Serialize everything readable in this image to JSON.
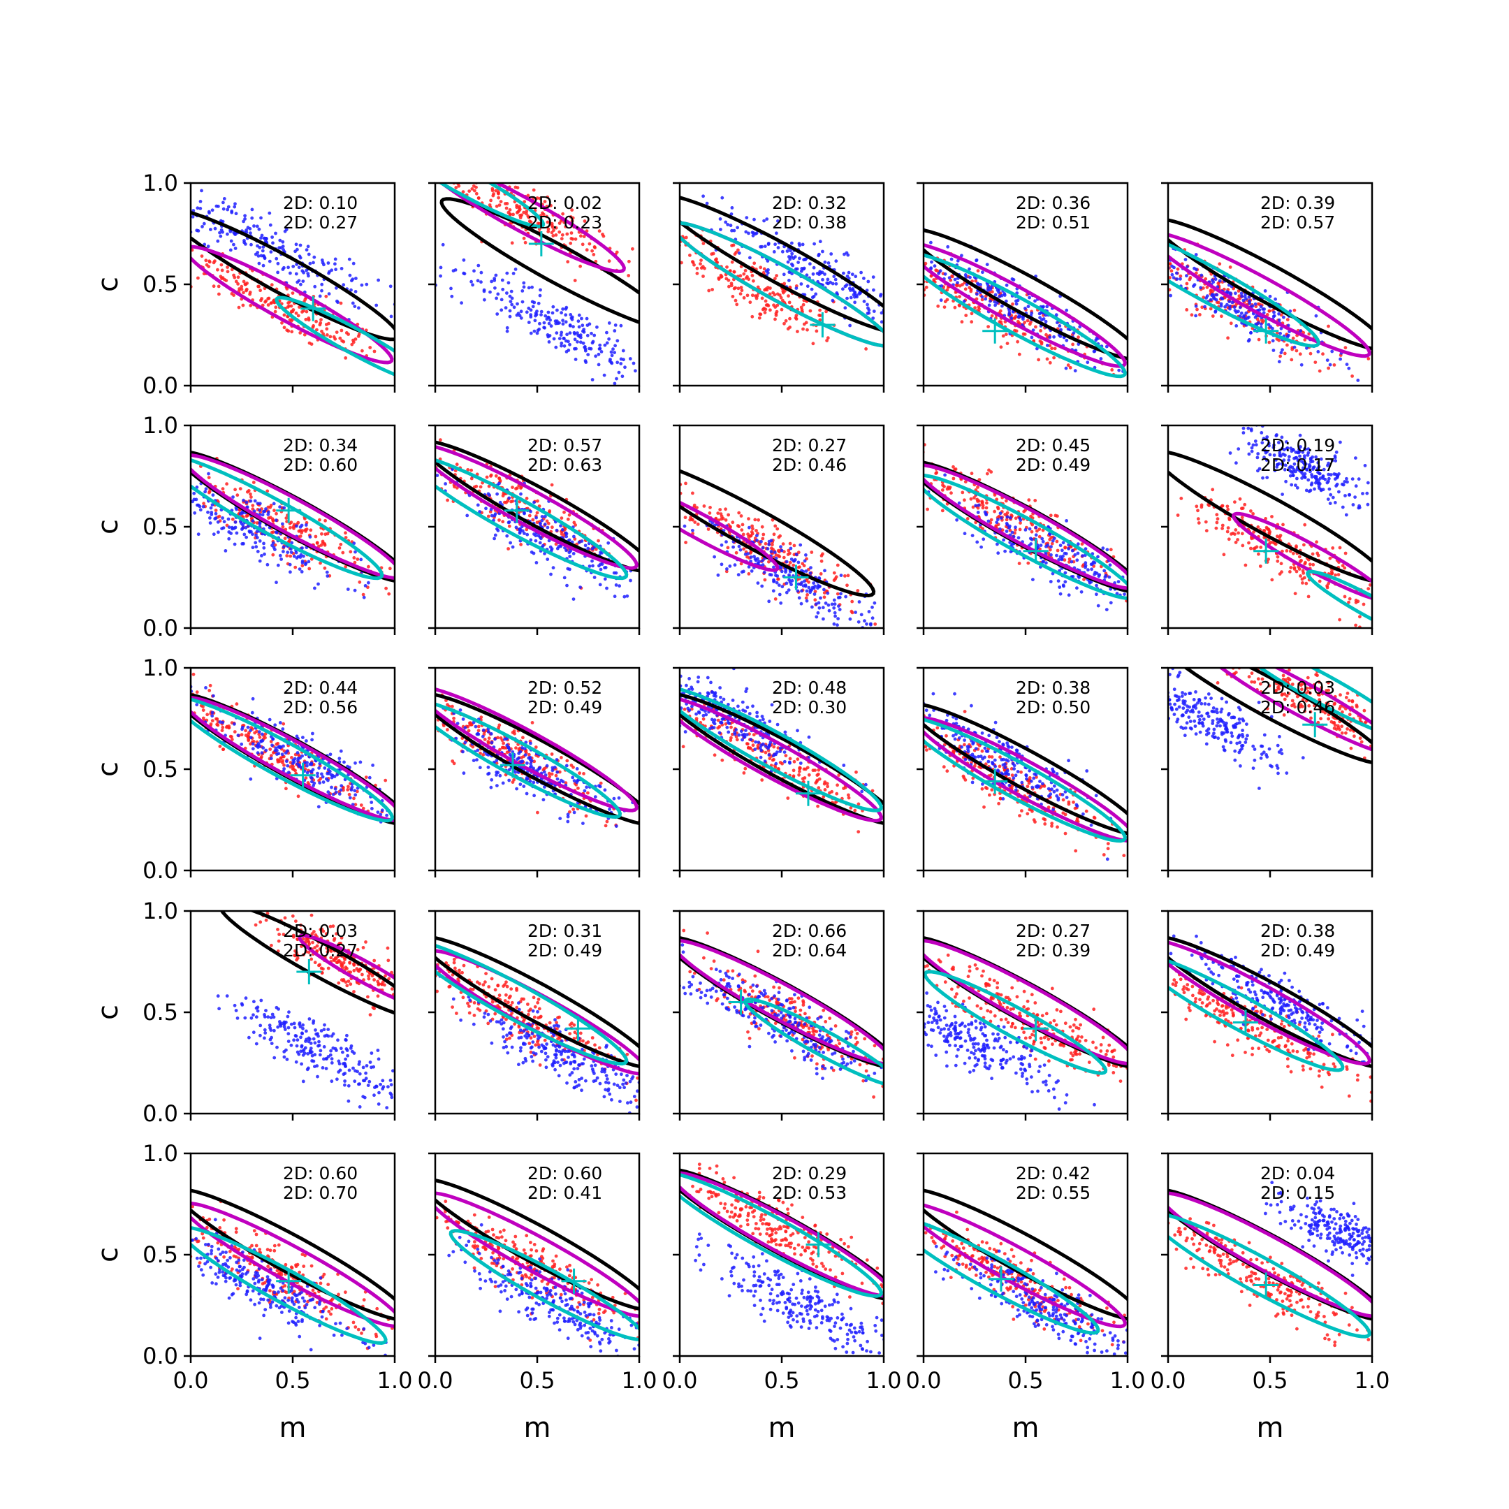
{
  "figure": {
    "x_axis_label": "m",
    "y_axis_label": "c",
    "colors": {
      "blue_points": "#1f1fff",
      "red_points": "#ff2020",
      "black_contour": "#000000",
      "magenta_contour": "#bf00bf",
      "cyan_contour": "#00bfbf",
      "marker": "#00bfbf"
    }
  },
  "chart_data": {
    "type": "scatter",
    "layout": "5x5 grid of panels",
    "xlabel": "m",
    "ylabel": "c",
    "xlim": [
      0.0,
      1.0
    ],
    "ylim": [
      0.0,
      1.0
    ],
    "xticks": [
      "0.0",
      "0.5",
      "1.0"
    ],
    "yticks": [
      "0.0",
      "0.5",
      "1.0"
    ],
    "series_colors": [
      "blue",
      "red",
      "black contour",
      "magenta contour",
      "cyan contour",
      "cyan + marker"
    ],
    "panels": [
      {
        "annotations": [
          "2D: 0.10",
          "2D: 0.27"
        ],
        "marker": [
          0.6,
          0.38
        ],
        "blue": {
          "m": 0.35,
          "c": 0.7,
          "s": 0.92
        },
        "red": {
          "m": 0.45,
          "c": 0.4,
          "s": 0.85
        },
        "black": {
          "m": 0.45,
          "c": 0.55,
          "s": 0.9
        },
        "magenta": {
          "m": 0.48,
          "c": 0.4,
          "s": 0.8
        },
        "cyan": {
          "m": 0.8,
          "c": 0.22,
          "s": 0.6
        }
      },
      {
        "annotations": [
          "2D: 0.02",
          "2D: 0.23"
        ],
        "marker": [
          0.52,
          0.7
        ],
        "blue": {
          "m": 0.6,
          "c": 0.3,
          "s": 0.9
        },
        "red": {
          "m": 0.45,
          "c": 0.85,
          "s": 0.8
        },
        "black": {
          "m": 0.6,
          "c": 0.6,
          "s": 0.9
        },
        "magenta": {
          "m": 0.42,
          "c": 0.85,
          "s": 0.8
        },
        "cyan": {
          "m": 0.15,
          "c": 1.0,
          "s": 0.6
        }
      },
      {
        "annotations": [
          "2D: 0.32",
          "2D: 0.38"
        ],
        "marker": [
          0.7,
          0.3
        ],
        "blue": {
          "m": 0.7,
          "c": 0.55,
          "s": 0.9
        },
        "red": {
          "m": 0.35,
          "c": 0.5,
          "s": 0.85
        },
        "black": {
          "m": 0.5,
          "c": 0.6,
          "s": 0.95
        },
        "magenta": {
          "m": 0.5,
          "c": 0.5,
          "s": 0.85
        },
        "cyan": {
          "m": 0.5,
          "c": 0.5,
          "s": 0.85
        }
      },
      {
        "annotations": [
          "2D: 0.36",
          "2D: 0.51"
        ],
        "marker": [
          0.35,
          0.27
        ],
        "blue": {
          "m": 0.45,
          "c": 0.4,
          "s": 0.85
        },
        "red": {
          "m": 0.3,
          "c": 0.4,
          "s": 0.85
        },
        "black": {
          "m": 0.5,
          "c": 0.45,
          "s": 0.9
        },
        "magenta": {
          "m": 0.45,
          "c": 0.4,
          "s": 0.85
        },
        "cyan": {
          "m": 0.45,
          "c": 0.35,
          "s": 0.85
        }
      },
      {
        "annotations": [
          "2D: 0.39",
          "2D: 0.57"
        ],
        "marker": [
          0.48,
          0.27
        ],
        "blue": {
          "m": 0.35,
          "c": 0.4,
          "s": 0.8
        },
        "red": {
          "m": 0.35,
          "c": 0.4,
          "s": 0.85
        },
        "black": {
          "m": 0.5,
          "c": 0.5,
          "s": 0.9
        },
        "magenta": {
          "m": 0.45,
          "c": 0.45,
          "s": 0.85
        },
        "cyan": {
          "m": 0.2,
          "c": 0.5,
          "s": 0.85
        }
      },
      {
        "annotations": [
          "2D: 0.34",
          "2D: 0.60"
        ],
        "marker": [
          0.48,
          0.58
        ],
        "blue": {
          "m": 0.3,
          "c": 0.5,
          "s": 0.8
        },
        "red": {
          "m": 0.45,
          "c": 0.5,
          "s": 0.85
        },
        "black": {
          "m": 0.5,
          "c": 0.55,
          "s": 0.9
        },
        "magenta": {
          "m": 0.5,
          "c": 0.55,
          "s": 0.85
        },
        "cyan": {
          "m": 0.4,
          "c": 0.55,
          "s": 0.85
        }
      },
      {
        "annotations": [
          "2D: 0.57",
          "2D: 0.63"
        ],
        "marker": [
          0.4,
          0.58
        ],
        "blue": {
          "m": 0.55,
          "c": 0.45,
          "s": 0.75
        },
        "red": {
          "m": 0.4,
          "c": 0.6,
          "s": 0.85
        },
        "black": {
          "m": 0.5,
          "c": 0.6,
          "s": 0.9
        },
        "magenta": {
          "m": 0.45,
          "c": 0.6,
          "s": 0.85
        },
        "cyan": {
          "m": 0.4,
          "c": 0.55,
          "s": 0.85
        }
      },
      {
        "annotations": [
          "2D: 0.27",
          "2D: 0.46"
        ],
        "marker": [
          0.57,
          0.25
        ],
        "blue": {
          "m": 0.55,
          "c": 0.25,
          "s": 0.7
        },
        "red": {
          "m": 0.4,
          "c": 0.4,
          "s": 0.8
        },
        "black": {
          "m": 0.35,
          "c": 0.5,
          "s": 0.95
        },
        "magenta": {
          "m": 0.1,
          "c": 0.5,
          "s": 0.6
        },
        "cyan": {
          "m": 0.0,
          "c": 0.0,
          "s": 0.0
        }
      },
      {
        "annotations": [
          "2D: 0.45",
          "2D: 0.49"
        ],
        "marker": [
          0.55,
          0.38
        ],
        "blue": {
          "m": 0.65,
          "c": 0.35,
          "s": 0.8
        },
        "red": {
          "m": 0.4,
          "c": 0.55,
          "s": 0.85
        },
        "black": {
          "m": 0.5,
          "c": 0.5,
          "s": 0.9
        },
        "magenta": {
          "m": 0.5,
          "c": 0.5,
          "s": 0.85
        },
        "cyan": {
          "m": 0.5,
          "c": 0.45,
          "s": 0.85
        }
      },
      {
        "annotations": [
          "2D: 0.19",
          "2D: 0.17"
        ],
        "marker": [
          0.48,
          0.38
        ],
        "blue": {
          "m": 0.65,
          "c": 0.8,
          "s": 0.5
        },
        "red": {
          "m": 0.55,
          "c": 0.4,
          "s": 0.8
        },
        "black": {
          "m": 0.5,
          "c": 0.55,
          "s": 0.9
        },
        "magenta": {
          "m": 0.7,
          "c": 0.35,
          "s": 0.6
        },
        "cyan": {
          "m": 1.0,
          "c": 0.1,
          "s": 0.5
        }
      },
      {
        "annotations": [
          "2D: 0.44",
          "2D: 0.56"
        ],
        "marker": [
          0.55,
          0.47
        ],
        "blue": {
          "m": 0.55,
          "c": 0.55,
          "s": 0.8
        },
        "red": {
          "m": 0.4,
          "c": 0.6,
          "s": 0.85
        },
        "black": {
          "m": 0.5,
          "c": 0.55,
          "s": 0.9
        },
        "magenta": {
          "m": 0.5,
          "c": 0.55,
          "s": 0.85
        },
        "cyan": {
          "m": 0.45,
          "c": 0.55,
          "s": 0.85
        }
      },
      {
        "annotations": [
          "2D: 0.52",
          "2D: 0.49"
        ],
        "marker": [
          0.38,
          0.52
        ],
        "blue": {
          "m": 0.45,
          "c": 0.5,
          "s": 0.75
        },
        "red": {
          "m": 0.35,
          "c": 0.6,
          "s": 0.85
        },
        "black": {
          "m": 0.5,
          "c": 0.55,
          "s": 0.9
        },
        "magenta": {
          "m": 0.45,
          "c": 0.6,
          "s": 0.85
        },
        "cyan": {
          "m": 0.4,
          "c": 0.55,
          "s": 0.8
        }
      },
      {
        "annotations": [
          "2D: 0.48",
          "2D: 0.30"
        ],
        "marker": [
          0.63,
          0.38
        ],
        "blue": {
          "m": 0.25,
          "c": 0.75,
          "s": 0.7
        },
        "red": {
          "m": 0.45,
          "c": 0.55,
          "s": 0.85
        },
        "black": {
          "m": 0.5,
          "c": 0.55,
          "s": 0.9
        },
        "magenta": {
          "m": 0.45,
          "c": 0.55,
          "s": 0.85
        },
        "cyan": {
          "m": 0.45,
          "c": 0.6,
          "s": 0.85
        }
      },
      {
        "annotations": [
          "2D: 0.38",
          "2D: 0.50"
        ],
        "marker": [
          0.35,
          0.44
        ],
        "blue": {
          "m": 0.35,
          "c": 0.55,
          "s": 0.8
        },
        "red": {
          "m": 0.4,
          "c": 0.45,
          "s": 0.85
        },
        "black": {
          "m": 0.5,
          "c": 0.5,
          "s": 0.9
        },
        "magenta": {
          "m": 0.5,
          "c": 0.45,
          "s": 0.85
        },
        "cyan": {
          "m": 0.45,
          "c": 0.45,
          "s": 0.85
        }
      },
      {
        "annotations": [
          "2D: 0.03",
          "2D: 0.46"
        ],
        "marker": [
          0.72,
          0.72
        ],
        "blue": {
          "m": 0.2,
          "c": 0.75,
          "s": 0.6
        },
        "red": {
          "m": 0.7,
          "c": 0.85,
          "s": 0.7
        },
        "black": {
          "m": 0.5,
          "c": 0.85,
          "s": 0.9
        },
        "magenta": {
          "m": 0.65,
          "c": 0.85,
          "s": 0.8
        },
        "cyan": {
          "m": 0.75,
          "c": 0.9,
          "s": 0.7
        }
      },
      {
        "annotations": [
          "2D: 0.03",
          "2D: 0.27"
        ],
        "marker": [
          0.58,
          0.7
        ],
        "blue": {
          "m": 0.65,
          "c": 0.3,
          "s": 0.8
        },
        "red": {
          "m": 0.75,
          "c": 0.75,
          "s": 0.6
        },
        "black": {
          "m": 0.65,
          "c": 0.75,
          "s": 0.8
        },
        "magenta": {
          "m": 0.85,
          "c": 0.7,
          "s": 0.5
        },
        "cyan": {
          "m": 0.0,
          "c": 0.0,
          "s": 0.0
        }
      },
      {
        "annotations": [
          "2D: 0.31",
          "2D: 0.49"
        ],
        "marker": [
          0.7,
          0.42
        ],
        "blue": {
          "m": 0.6,
          "c": 0.3,
          "s": 0.8
        },
        "red": {
          "m": 0.4,
          "c": 0.5,
          "s": 0.85
        },
        "black": {
          "m": 0.5,
          "c": 0.55,
          "s": 0.9
        },
        "magenta": {
          "m": 0.5,
          "c": 0.5,
          "s": 0.85
        },
        "cyan": {
          "m": 0.4,
          "c": 0.55,
          "s": 0.85
        }
      },
      {
        "annotations": [
          "2D: 0.66",
          "2D: 0.64"
        ],
        "marker": [
          0.3,
          0.55
        ],
        "blue": {
          "m": 0.5,
          "c": 0.45,
          "s": 0.8
        },
        "red": {
          "m": 0.55,
          "c": 0.45,
          "s": 0.8
        },
        "black": {
          "m": 0.5,
          "c": 0.55,
          "s": 0.9
        },
        "magenta": {
          "m": 0.5,
          "c": 0.55,
          "s": 0.85
        },
        "cyan": {
          "m": 0.7,
          "c": 0.35,
          "s": 0.6
        }
      },
      {
        "annotations": [
          "2D: 0.27",
          "2D: 0.39"
        ],
        "marker": [
          0.55,
          0.42
        ],
        "blue": {
          "m": 0.25,
          "c": 0.35,
          "s": 0.7
        },
        "red": {
          "m": 0.55,
          "c": 0.45,
          "s": 0.85
        },
        "black": {
          "m": 0.5,
          "c": 0.55,
          "s": 0.9
        },
        "magenta": {
          "m": 0.5,
          "c": 0.55,
          "s": 0.85
        },
        "cyan": {
          "m": 0.45,
          "c": 0.45,
          "s": 0.7
        }
      },
      {
        "annotations": [
          "2D: 0.38",
          "2D: 0.49"
        ],
        "marker": [
          0.38,
          0.45
        ],
        "blue": {
          "m": 0.55,
          "c": 0.55,
          "s": 0.8
        },
        "red": {
          "m": 0.4,
          "c": 0.45,
          "s": 0.85
        },
        "black": {
          "m": 0.5,
          "c": 0.55,
          "s": 0.9
        },
        "magenta": {
          "m": 0.45,
          "c": 0.55,
          "s": 0.85
        },
        "cyan": {
          "m": 0.35,
          "c": 0.5,
          "s": 0.8
        }
      },
      {
        "annotations": [
          "2D: 0.60",
          "2D: 0.70"
        ],
        "marker": [
          0.48,
          0.37
        ],
        "blue": {
          "m": 0.35,
          "c": 0.35,
          "s": 0.8
        },
        "red": {
          "m": 0.45,
          "c": 0.4,
          "s": 0.85
        },
        "black": {
          "m": 0.5,
          "c": 0.5,
          "s": 0.9
        },
        "magenta": {
          "m": 0.5,
          "c": 0.45,
          "s": 0.85
        },
        "cyan": {
          "m": 0.45,
          "c": 0.35,
          "s": 0.8
        }
      },
      {
        "annotations": [
          "2D: 0.60",
          "2D: 0.41"
        ],
        "marker": [
          0.68,
          0.37
        ],
        "blue": {
          "m": 0.6,
          "c": 0.25,
          "s": 0.8
        },
        "red": {
          "m": 0.45,
          "c": 0.45,
          "s": 0.85
        },
        "black": {
          "m": 0.5,
          "c": 0.55,
          "s": 0.9
        },
        "magenta": {
          "m": 0.5,
          "c": 0.5,
          "s": 0.85
        },
        "cyan": {
          "m": 0.55,
          "c": 0.35,
          "s": 0.75
        }
      },
      {
        "annotations": [
          "2D: 0.29",
          "2D: 0.53"
        ],
        "marker": [
          0.68,
          0.55
        ],
        "blue": {
          "m": 0.6,
          "c": 0.25,
          "s": 0.8
        },
        "red": {
          "m": 0.45,
          "c": 0.65,
          "s": 0.85
        },
        "black": {
          "m": 0.5,
          "c": 0.6,
          "s": 0.9
        },
        "magenta": {
          "m": 0.5,
          "c": 0.6,
          "s": 0.85
        },
        "cyan": {
          "m": 0.45,
          "c": 0.6,
          "s": 0.85
        }
      },
      {
        "annotations": [
          "2D: 0.42",
          "2D: 0.55"
        ],
        "marker": [
          0.38,
          0.38
        ],
        "blue": {
          "m": 0.6,
          "c": 0.25,
          "s": 0.8
        },
        "red": {
          "m": 0.4,
          "c": 0.4,
          "s": 0.85
        },
        "black": {
          "m": 0.5,
          "c": 0.5,
          "s": 0.9
        },
        "magenta": {
          "m": 0.45,
          "c": 0.45,
          "s": 0.85
        },
        "cyan": {
          "m": 0.35,
          "c": 0.4,
          "s": 0.8
        }
      },
      {
        "annotations": [
          "2D: 0.04",
          "2D: 0.15"
        ],
        "marker": [
          0.48,
          0.35
        ],
        "blue": {
          "m": 0.85,
          "c": 0.6,
          "s": 0.5
        },
        "red": {
          "m": 0.45,
          "c": 0.4,
          "s": 0.85
        },
        "black": {
          "m": 0.5,
          "c": 0.5,
          "s": 0.9
        },
        "magenta": {
          "m": 0.5,
          "c": 0.5,
          "s": 0.85
        },
        "cyan": {
          "m": 0.45,
          "c": 0.4,
          "s": 0.85
        }
      }
    ]
  }
}
